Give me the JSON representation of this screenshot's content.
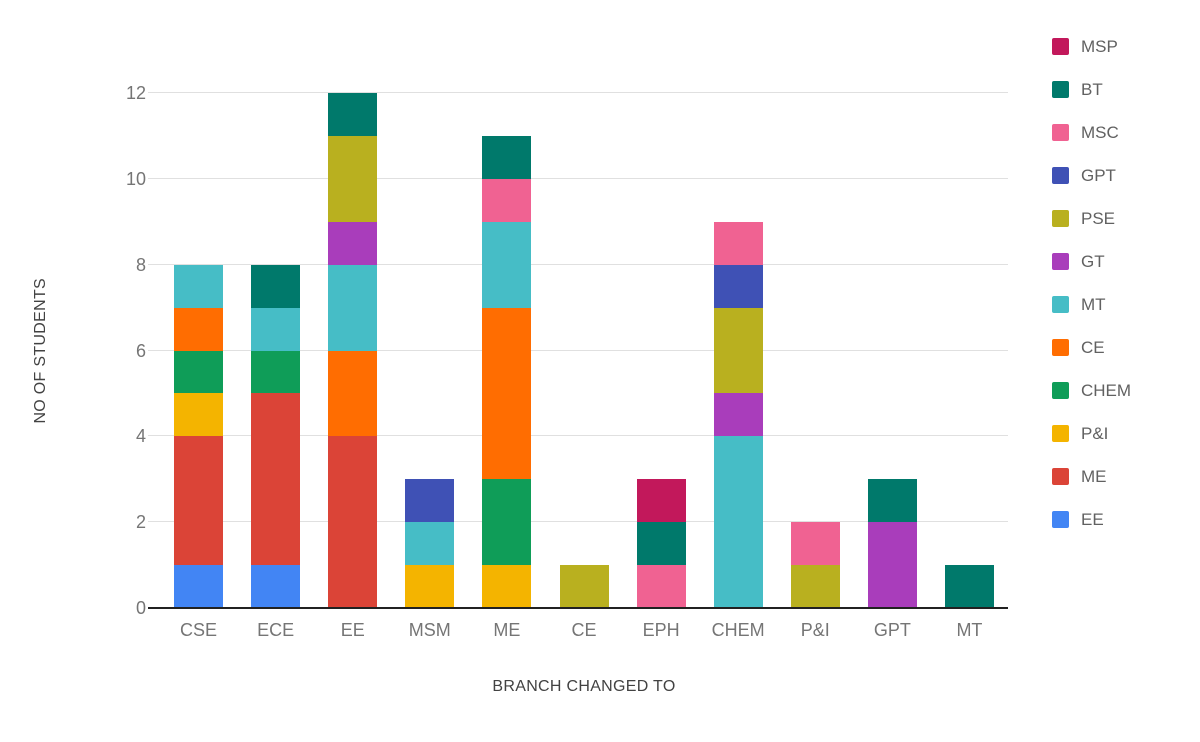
{
  "chart_data": {
    "type": "bar",
    "stacked": true,
    "title": "",
    "xlabel": "BRANCH CHANGED TO",
    "ylabel": "NO OF STUDENTS",
    "ylim": [
      0,
      12
    ],
    "yticks": [
      0,
      2,
      4,
      6,
      8,
      10,
      12
    ],
    "grid": true,
    "legend_position": "right",
    "categories": [
      "CSE",
      "ECE",
      "EE",
      "MSM",
      "ME",
      "CE",
      "EPH",
      "CHEM",
      "P&I",
      "GPT",
      "MT"
    ],
    "series": [
      {
        "name": "EE",
        "color": "#4285F4",
        "values": [
          1,
          1,
          0,
          0,
          0,
          0,
          0,
          0,
          0,
          0,
          0
        ]
      },
      {
        "name": "ME",
        "color": "#DB4437",
        "values": [
          3,
          4,
          4,
          0,
          0,
          0,
          0,
          0,
          0,
          0,
          0
        ]
      },
      {
        "name": "P&I",
        "color": "#F4B400",
        "values": [
          1,
          0,
          0,
          1,
          1,
          0,
          0,
          0,
          0,
          0,
          0
        ]
      },
      {
        "name": "CHEM",
        "color": "#0F9D58",
        "values": [
          1,
          1,
          0,
          0,
          2,
          0,
          0,
          0,
          0,
          0,
          0
        ]
      },
      {
        "name": "CE",
        "color": "#FF6D01",
        "values": [
          1,
          0,
          2,
          0,
          4,
          0,
          0,
          0,
          0,
          0,
          0
        ]
      },
      {
        "name": "MT",
        "color": "#46BDC6",
        "values": [
          1,
          1,
          2,
          1,
          2,
          0,
          0,
          4,
          0,
          0,
          0
        ]
      },
      {
        "name": "GT",
        "color": "#A93DBB",
        "values": [
          0,
          0,
          1,
          0,
          0,
          0,
          0,
          1,
          0,
          2,
          0
        ]
      },
      {
        "name": "PSE",
        "color": "#B9B01F",
        "values": [
          0,
          0,
          2,
          0,
          0,
          1,
          0,
          2,
          1,
          0,
          0
        ]
      },
      {
        "name": "GPT",
        "color": "#3F51B5",
        "values": [
          0,
          0,
          0,
          1,
          0,
          0,
          0,
          1,
          0,
          0,
          0
        ]
      },
      {
        "name": "MSC",
        "color": "#F06292",
        "values": [
          0,
          0,
          0,
          0,
          1,
          0,
          1,
          1,
          1,
          0,
          0
        ]
      },
      {
        "name": "BT",
        "color": "#00796B",
        "values": [
          0,
          1,
          1,
          0,
          1,
          0,
          1,
          0,
          0,
          1,
          1
        ]
      },
      {
        "name": "MSP",
        "color": "#C2185B",
        "values": [
          0,
          0,
          0,
          0,
          0,
          0,
          1,
          0,
          0,
          0,
          0
        ]
      }
    ],
    "legend_order": [
      "MSP",
      "BT",
      "MSC",
      "GPT",
      "PSE",
      "GT",
      "MT",
      "CE",
      "CHEM",
      "P&I",
      "ME",
      "EE"
    ],
    "category_totals": [
      8,
      8,
      12,
      3,
      11,
      1,
      3,
      9,
      2,
      3,
      1
    ]
  }
}
